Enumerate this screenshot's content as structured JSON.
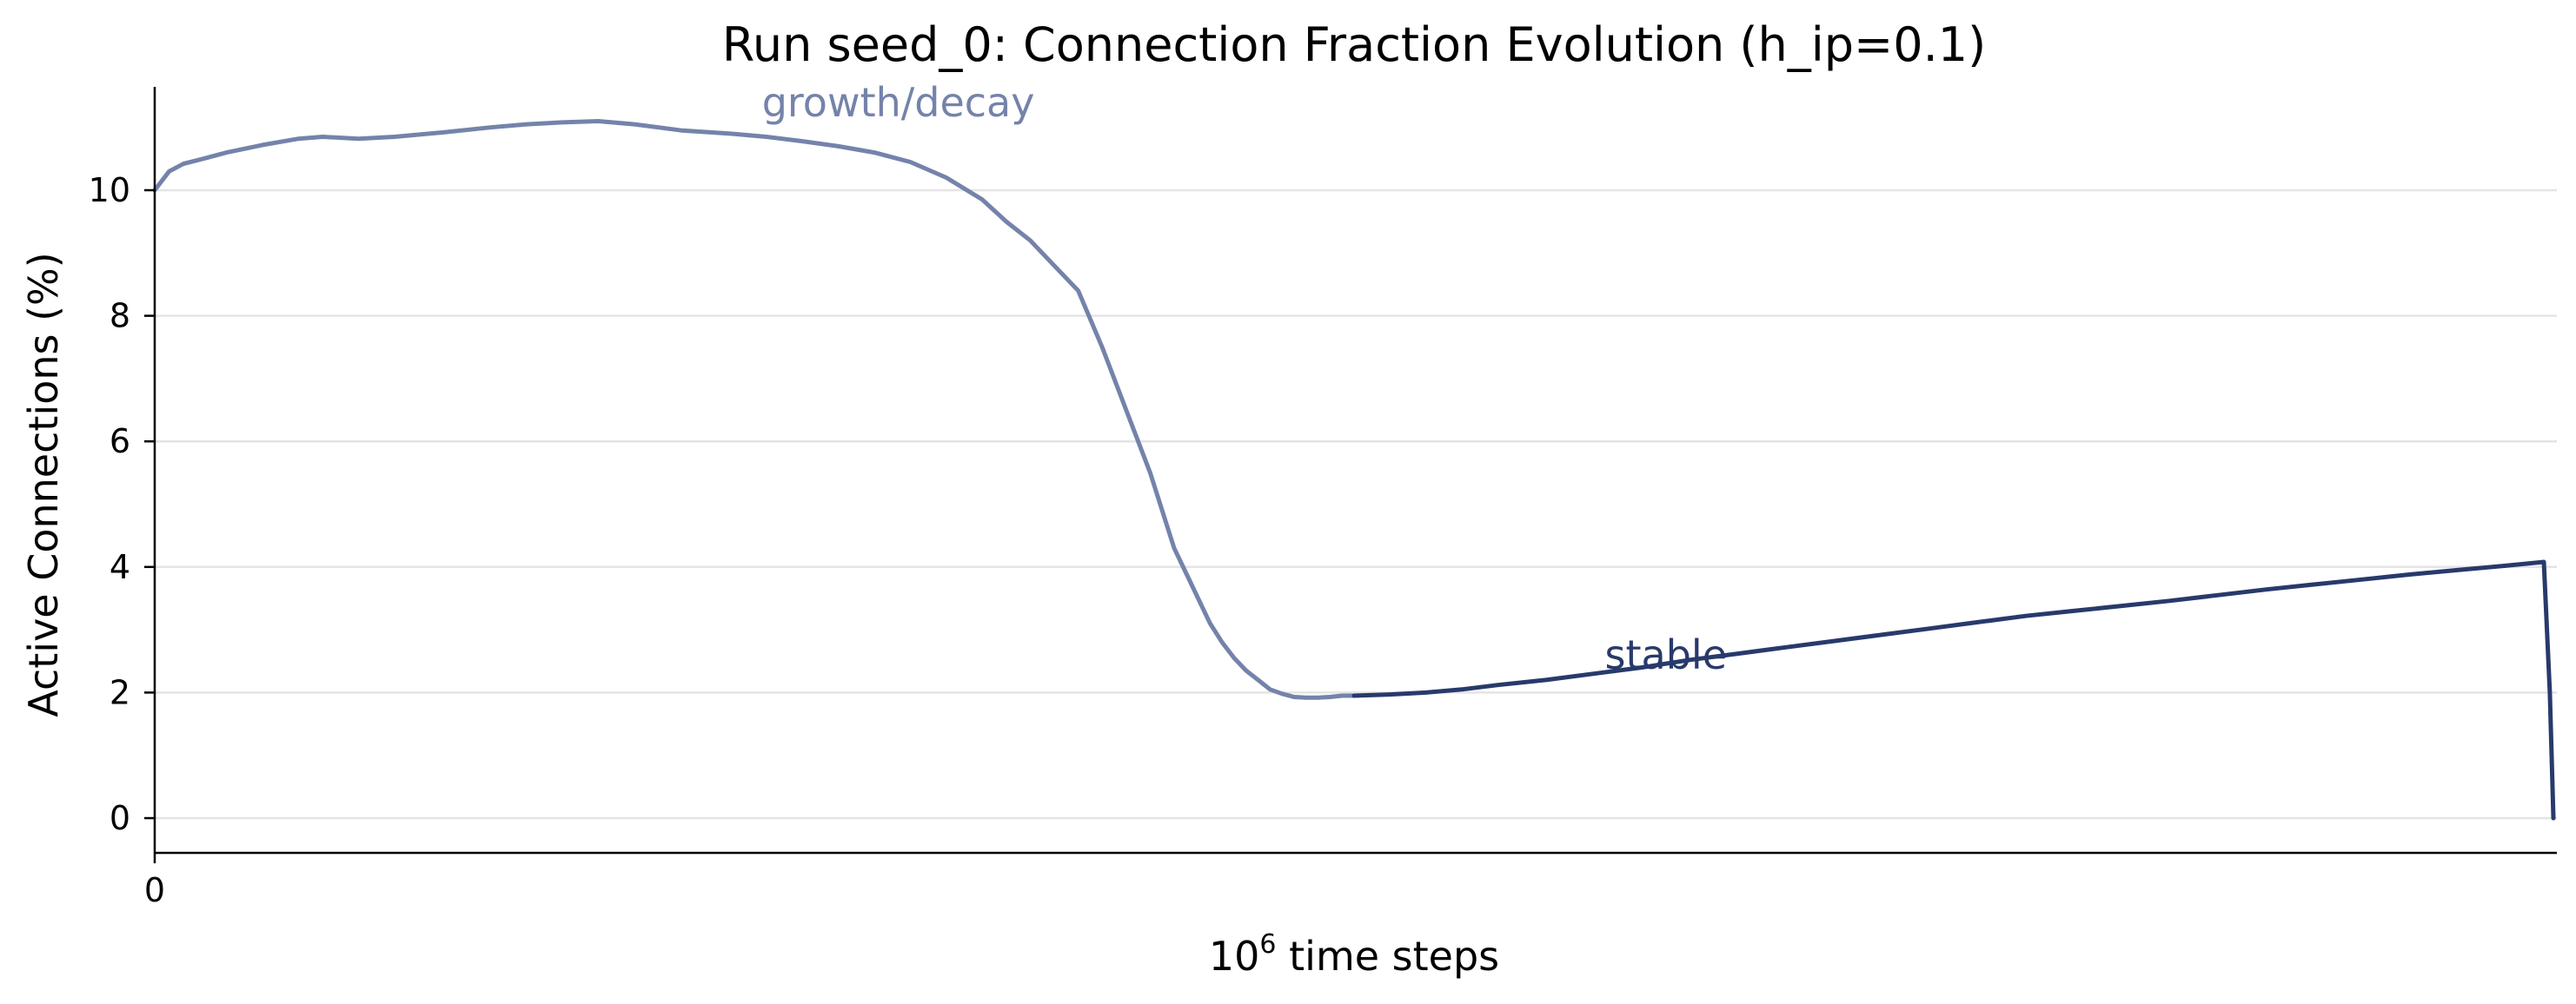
{
  "chart_data": {
    "type": "line",
    "title": "Run seed_0: Connection Fraction Evolution (h_ip=0.1)",
    "xlabel_base": "10",
    "xlabel_exp": "6",
    "xlabel_rest": " time steps",
    "ylabel": "Active Connections (%)",
    "xlim": [
      0,
      100
    ],
    "ylim": [
      -0.55,
      11.7
    ],
    "yticks": [
      0,
      2,
      4,
      6,
      8,
      10
    ],
    "xticks": [
      0
    ],
    "grid": "horizontal",
    "colors": {
      "growth": "#7483aa",
      "stable": "#283a6b",
      "grid": "#e4e4e4",
      "axis": "#000000"
    },
    "annotations": [
      {
        "text": "growth/decay",
        "x": 31,
        "y": 11.4,
        "series": "growth"
      },
      {
        "text": "stable",
        "x": 63,
        "y": 2.6,
        "series": "stable"
      }
    ],
    "series": [
      {
        "key": "growth",
        "x": [
          0,
          0.6,
          1.2,
          2,
          3,
          4.5,
          6,
          7,
          8.5,
          10,
          12,
          14,
          15.5,
          17,
          18.5,
          20,
          22,
          24,
          25.5,
          27,
          28.5,
          30,
          31.5,
          33,
          34.5,
          35.5,
          36.5,
          37.5,
          38.5,
          39.5,
          40.5,
          41.5,
          42,
          42.5,
          43,
          43.5,
          44,
          44.5,
          45,
          45.5,
          46,
          46.5,
          47,
          47.5,
          48,
          48.5,
          49,
          49.5,
          50
        ],
        "y": [
          10.0,
          10.3,
          10.42,
          10.5,
          10.6,
          10.72,
          10.82,
          10.85,
          10.82,
          10.85,
          10.92,
          11.0,
          11.05,
          11.08,
          11.1,
          11.05,
          10.95,
          10.9,
          10.85,
          10.78,
          10.7,
          10.6,
          10.45,
          10.2,
          9.85,
          9.5,
          9.2,
          8.8,
          8.4,
          7.5,
          6.5,
          5.5,
          4.9,
          4.3,
          3.9,
          3.5,
          3.1,
          2.8,
          2.55,
          2.35,
          2.2,
          2.05,
          1.98,
          1.93,
          1.92,
          1.92,
          1.93,
          1.95,
          1.95
        ]
      },
      {
        "key": "stable",
        "x": [
          50,
          51.5,
          53,
          54.5,
          56,
          58,
          60,
          62,
          64,
          66,
          68,
          70,
          72,
          74,
          76,
          78,
          80,
          82,
          84,
          86,
          88,
          90,
          92,
          94,
          96,
          98,
          99.6,
          99.85,
          100
        ],
        "y": [
          1.95,
          1.97,
          2.0,
          2.05,
          2.12,
          2.2,
          2.3,
          2.4,
          2.52,
          2.62,
          2.72,
          2.82,
          2.92,
          3.02,
          3.12,
          3.22,
          3.3,
          3.38,
          3.46,
          3.55,
          3.64,
          3.72,
          3.8,
          3.88,
          3.95,
          4.02,
          4.08,
          2.0,
          0.0
        ]
      }
    ]
  }
}
